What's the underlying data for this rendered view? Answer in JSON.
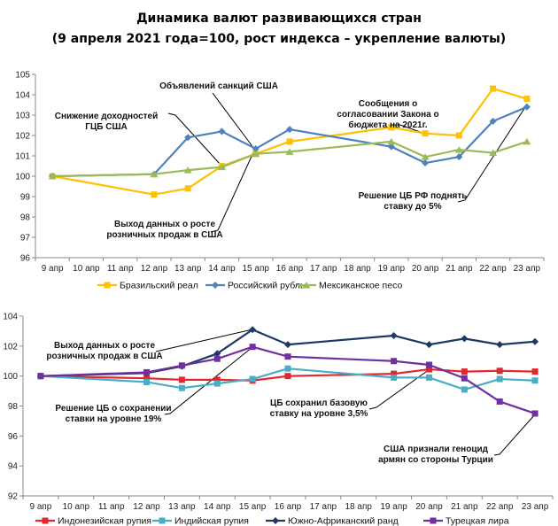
{
  "title": {
    "line1": "Динамика валют развивающихся стран",
    "line2": "(9 апреля 2021 года=100, рост индекса – укрепление валюты)"
  },
  "chart_data": [
    {
      "type": "line",
      "id": "upper",
      "title": "",
      "xlabel": "",
      "ylabel": "",
      "categories": [
        "9 апр",
        "10 апр",
        "11 апр",
        "12 апр",
        "13 апр",
        "14 апр",
        "15 апр",
        "16 апр",
        "17 апр",
        "18 апр",
        "19 апр",
        "20 апр",
        "21 апр",
        "22 апр",
        "23 апр"
      ],
      "ylim": [
        96,
        105
      ],
      "yticks": [
        96,
        97,
        98,
        99,
        100,
        101,
        102,
        103,
        104,
        105
      ],
      "grid": false,
      "legend_position": "bottom",
      "series": [
        {
          "name": "Бразильский реал",
          "color": "#FFC000",
          "marker": "square",
          "values": [
            100,
            null,
            null,
            99.1,
            99.4,
            100.5,
            101.1,
            101.7,
            null,
            null,
            102.4,
            102.1,
            102.0,
            104.3,
            103.8
          ]
        },
        {
          "name": "Российский рубль",
          "color": "#4F81BD",
          "marker": "diamond",
          "values": [
            100,
            null,
            null,
            100.1,
            101.9,
            102.2,
            101.35,
            102.3,
            null,
            null,
            101.45,
            100.65,
            100.95,
            102.7,
            103.4
          ]
        },
        {
          "name": "Мексиканское песо",
          "color": "#9BBB59",
          "marker": "triangle",
          "values": [
            100,
            null,
            null,
            100.1,
            100.3,
            100.45,
            101.1,
            101.2,
            null,
            null,
            101.7,
            100.95,
            101.3,
            101.15,
            101.7
          ]
        }
      ],
      "annotations": [
        {
          "lines": [
            "Объявлений санкций США"
          ],
          "category": "15 апр",
          "series": "Российский рубль"
        },
        {
          "lines": [
            "Снижение доходностей",
            "ГЦБ США"
          ],
          "category": "14 апр",
          "series": "Мексиканское песо"
        },
        {
          "lines": [
            "Сообщения о",
            "согласовании Закона о",
            "бюджета на 2021г."
          ],
          "category": "20 апр",
          "series": "Бразильский реал"
        },
        {
          "lines": [
            "Выход данных о росте",
            "розничных продаж в США"
          ],
          "category": "15 апр",
          "series": "Российский рубль"
        },
        {
          "lines": [
            "Решение ЦБ РФ поднять",
            "ставку до 5%"
          ],
          "category": "23 апр",
          "series": "Российский рубль"
        }
      ]
    },
    {
      "type": "line",
      "id": "lower",
      "title": "",
      "xlabel": "",
      "ylabel": "",
      "categories": [
        "9 апр",
        "10 апр",
        "11 апр",
        "12 апр",
        "13 апр",
        "14 апр",
        "15 апр",
        "16 апр",
        "17 апр",
        "18 апр",
        "19 апр",
        "20 апр",
        "21 апр",
        "22 апр",
        "23 апр"
      ],
      "ylim": [
        92,
        104
      ],
      "yticks": [
        92,
        94,
        96,
        98,
        100,
        102,
        104
      ],
      "grid": false,
      "legend_position": "bottom",
      "series": [
        {
          "name": "Индонезийская рупия",
          "color": "#E3272E",
          "marker": "square",
          "values": [
            100,
            null,
            null,
            99.85,
            99.75,
            99.75,
            99.7,
            100.0,
            null,
            null,
            100.15,
            100.45,
            100.3,
            100.35,
            100.3
          ]
        },
        {
          "name": "Индийская рупия",
          "color": "#4BACC6",
          "marker": "square",
          "values": [
            100,
            null,
            null,
            99.6,
            99.2,
            99.5,
            99.8,
            100.5,
            null,
            null,
            99.9,
            99.9,
            99.1,
            99.8,
            99.7
          ]
        },
        {
          "name": "Южно-Африканский ранд",
          "color": "#1F3864",
          "marker": "diamond",
          "values": [
            100,
            null,
            null,
            100.2,
            100.65,
            101.5,
            103.1,
            102.1,
            null,
            null,
            102.7,
            102.1,
            102.5,
            102.1,
            102.3
          ]
        },
        {
          "name": "Турецкая лира",
          "color": "#7030A0",
          "marker": "square",
          "values": [
            100,
            null,
            null,
            100.25,
            100.7,
            101.15,
            101.95,
            101.3,
            null,
            null,
            101.0,
            100.75,
            99.85,
            98.3,
            97.5
          ]
        }
      ],
      "annotations": [
        {
          "lines": [
            "Выход данных о росте",
            "розничных продаж в США"
          ],
          "category": "15 апр",
          "series": "Южно-Африканский ранд"
        },
        {
          "lines": [
            "Решение ЦБ о сохранении",
            "ставки на уровне 19%"
          ],
          "category": "15 апр",
          "series": "Турецкая лира"
        },
        {
          "lines": [
            "ЦБ сохранил базовую",
            "ставку на уровне 3,5%"
          ],
          "category": "20 апр",
          "series": "Индонезийская рупия"
        },
        {
          "lines": [
            "США признали геноцид",
            "армян со стороны Турции"
          ],
          "category": "23 апр",
          "series": "Турецкая лира"
        }
      ]
    }
  ]
}
